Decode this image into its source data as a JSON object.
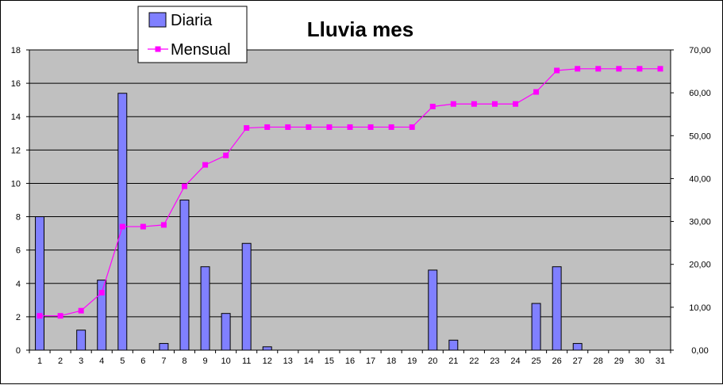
{
  "chart_data": {
    "type": "bar",
    "title": "Lluvia mes",
    "categories": [
      "1",
      "2",
      "3",
      "4",
      "5",
      "6",
      "7",
      "8",
      "9",
      "10",
      "11",
      "12",
      "13",
      "14",
      "15",
      "16",
      "17",
      "18",
      "19",
      "20",
      "21",
      "22",
      "23",
      "24",
      "25",
      "26",
      "27",
      "28",
      "29",
      "30",
      "31"
    ],
    "series": [
      {
        "name": "Diaria",
        "type": "bar",
        "axis": "left",
        "color": "#8080FF",
        "values": [
          8,
          0,
          1.2,
          4.2,
          15.4,
          0,
          0.4,
          9,
          5,
          2.2,
          6.4,
          0.2,
          0,
          0,
          0,
          0,
          0,
          0,
          0,
          4.8,
          0.6,
          0,
          0,
          0,
          2.8,
          5,
          0.4,
          0,
          0,
          0,
          0
        ]
      },
      {
        "name": "Mensual",
        "type": "line",
        "axis": "right",
        "color": "#FF00FF",
        "values": [
          8.0,
          8.0,
          9.2,
          13.4,
          28.8,
          28.8,
          29.2,
          38.2,
          43.2,
          45.4,
          51.8,
          52.0,
          52.0,
          52.0,
          52.0,
          52.0,
          52.0,
          52.0,
          52.0,
          56.8,
          57.4,
          57.4,
          57.4,
          57.4,
          60.2,
          65.2,
          65.6,
          65.6,
          65.6,
          65.6,
          65.6
        ]
      }
    ],
    "y_left": {
      "range": [
        0,
        18
      ],
      "ticks": [
        "0",
        "2",
        "4",
        "6",
        "8",
        "10",
        "12",
        "14",
        "16",
        "18"
      ]
    },
    "y_right": {
      "range": [
        0,
        70
      ],
      "ticks": [
        "0,00",
        "10,00",
        "20,00",
        "30,00",
        "40,00",
        "50,00",
        "60,00",
        "70,00"
      ]
    },
    "grid": true,
    "plot_background": "#C0C0C0",
    "legend_position": "top-left"
  }
}
